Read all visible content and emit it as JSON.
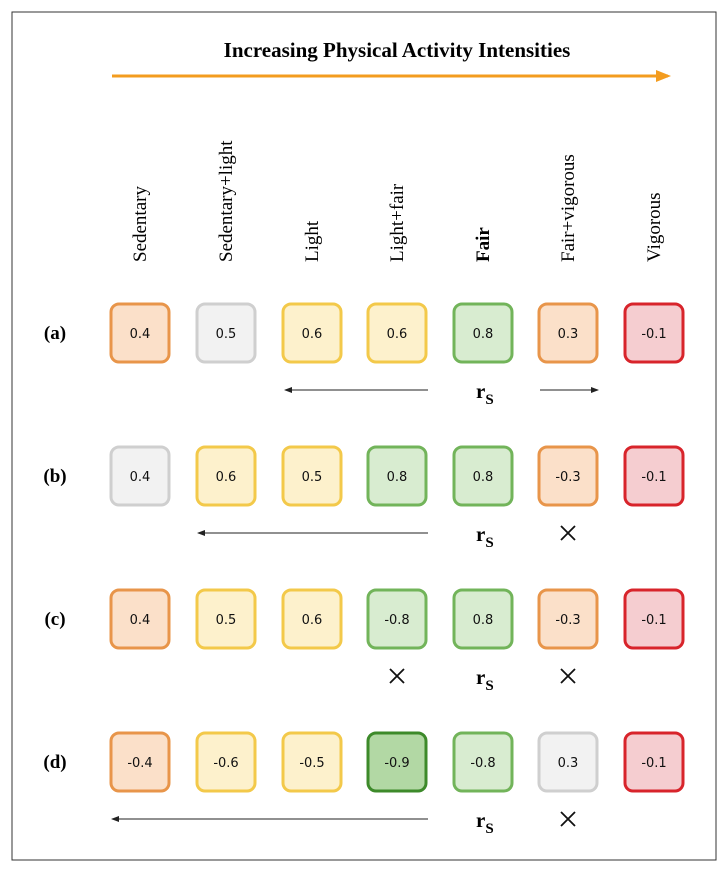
{
  "title": "Increasing Physical Activity Intensities",
  "columns": [
    "Sedentary",
    "Sedentary+light",
    "Light",
    "Light+fair",
    "Fair",
    "Fair+vigorous",
    "Vigorous"
  ],
  "rows": [
    {
      "label": "(a)",
      "cells": [
        {
          "value": 0.4,
          "color": "#fbe0c9"
        },
        {
          "value": 0.5,
          "color": "#f2f2f2"
        },
        {
          "value": 0.6,
          "color": "#fdf1cc"
        },
        {
          "value": 0.6,
          "color": "#fdf1cc"
        },
        {
          "value": 0.8,
          "color": "#d8ecd0"
        },
        {
          "value": 0.3,
          "color": "#fbe0c9"
        },
        {
          "value": -0.1,
          "color": "#f5cdd0"
        }
      ]
    },
    {
      "label": "(b)",
      "cells": [
        {
          "value": 0.4,
          "color": "#f2f2f2"
        },
        {
          "value": 0.6,
          "color": "#fdf1cc"
        },
        {
          "value": 0.5,
          "color": "#fdf1cc"
        },
        {
          "value": 0.8,
          "color": "#d8ecd0"
        },
        {
          "value": 0.8,
          "color": "#d8ecd0"
        },
        {
          "value": -0.3,
          "color": "#fbe0c9"
        },
        {
          "value": -0.1,
          "color": "#f5cdd0"
        }
      ]
    },
    {
      "label": "(c)",
      "cells": [
        {
          "value": 0.4,
          "color": "#fbe0c9"
        },
        {
          "value": 0.5,
          "color": "#fdf1cc"
        },
        {
          "value": 0.6,
          "color": "#fdf1cc"
        },
        {
          "value": -0.8,
          "color": "#d8ecd0"
        },
        {
          "value": 0.8,
          "color": "#d8ecd0"
        },
        {
          "value": -0.3,
          "color": "#fbe0c9"
        },
        {
          "value": -0.1,
          "color": "#f5cdd0"
        }
      ]
    },
    {
      "label": "(d)",
      "cells": [
        {
          "value": -0.4,
          "color": "#fbe0c9"
        },
        {
          "value": -0.6,
          "color": "#fdf1cc"
        },
        {
          "value": -0.5,
          "color": "#fdf1cc"
        },
        {
          "value": -0.9,
          "color": "#b2d8a4"
        },
        {
          "value": -0.8,
          "color": "#d8ecd0"
        },
        {
          "value": 0.3,
          "color": "#f2f2f2"
        },
        {
          "value": -0.1,
          "color": "#f5cdd0"
        }
      ]
    }
  ],
  "rs_label": {
    "main": "r",
    "sub": "S"
  }
}
